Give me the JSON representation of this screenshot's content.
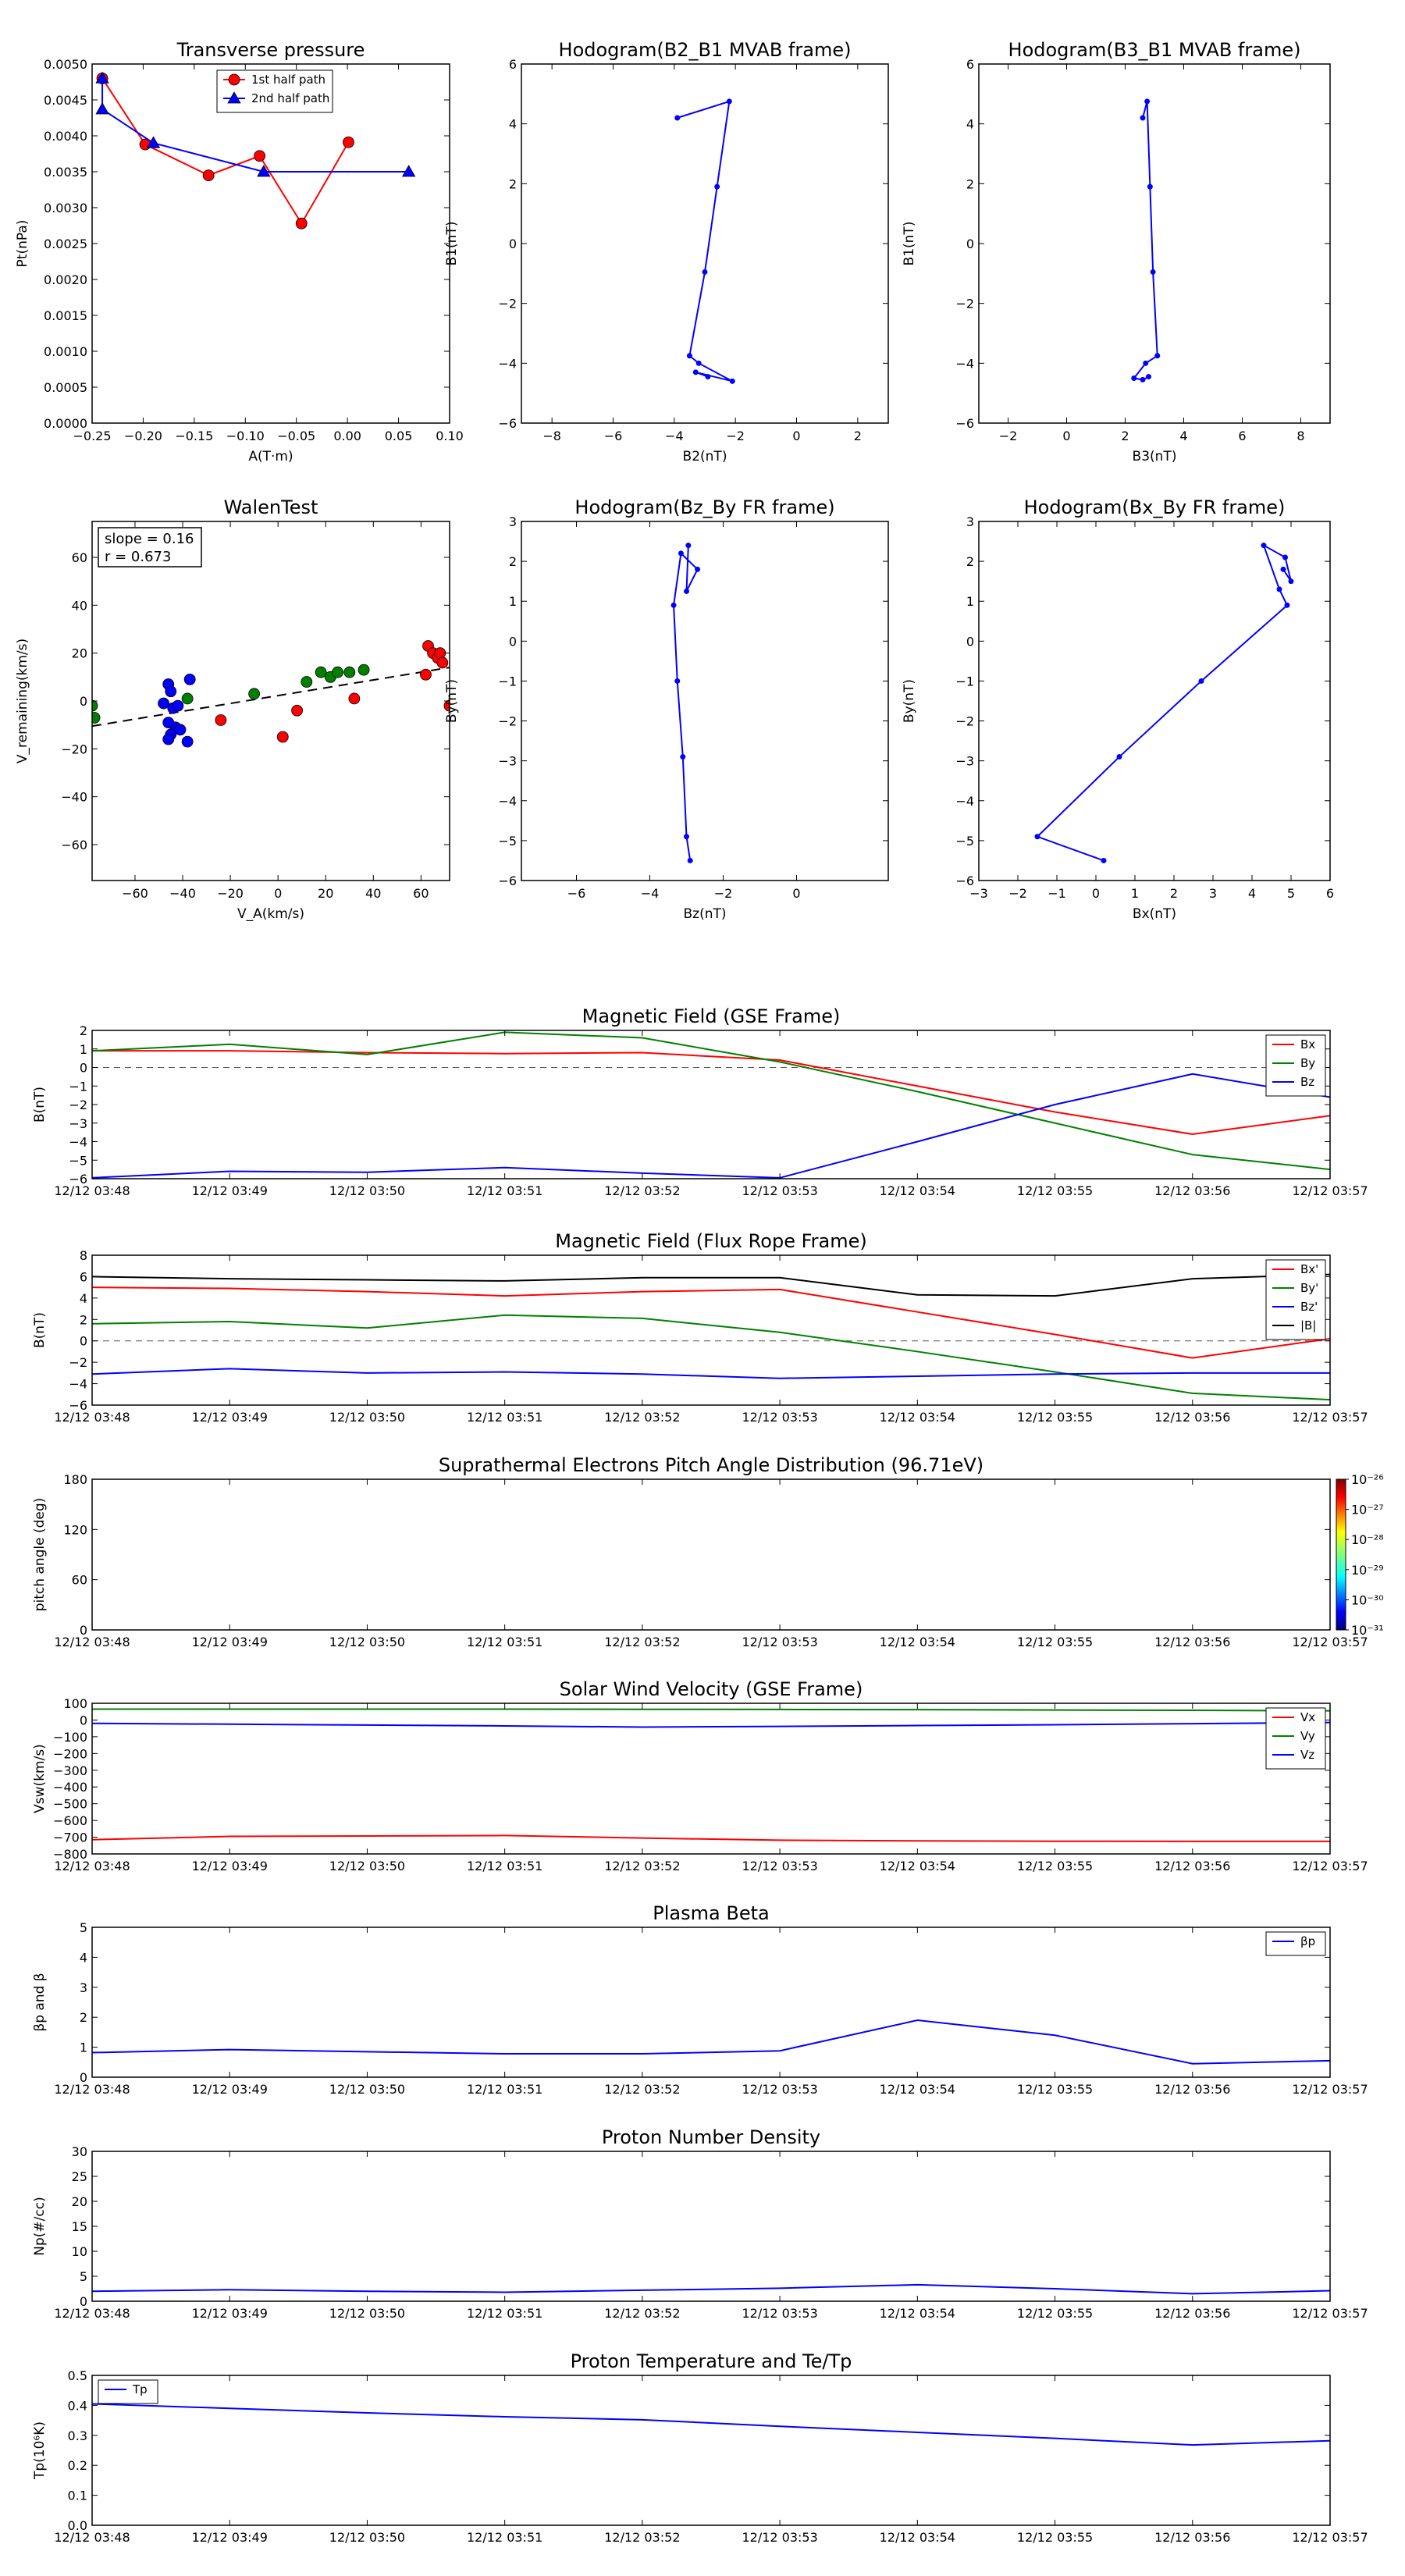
{
  "colors": {
    "red": "#ff0000",
    "green": "#008000",
    "blue": "#0000ff",
    "black": "#000000"
  },
  "time_ticks": [
    "12/12 03:48",
    "12/12 03:49",
    "12/12 03:50",
    "12/12 03:51",
    "12/12 03:52",
    "12/12 03:53",
    "12/12 03:54",
    "12/12 03:55",
    "12/12 03:56",
    "12/12 03:57"
  ],
  "chart_data": [
    {
      "id": "pt",
      "type": "line",
      "title": "Transverse pressure",
      "xlabel": "A(T·m)",
      "ylabel": "Pt(nPa)",
      "xlim": [
        -0.25,
        0.1
      ],
      "ylim": [
        0,
        0.005
      ],
      "xticks": [
        "−0.25",
        "−0.20",
        "−0.15",
        "−0.10",
        "−0.05",
        "0.00",
        "0.05",
        "0.10"
      ],
      "yticks": [
        "0.0000",
        "0.0005",
        "0.0010",
        "0.0015",
        "0.0020",
        "0.0025",
        "0.0030",
        "0.0035",
        "0.0040",
        "0.0045",
        "0.0050"
      ],
      "legend": "top-center",
      "series": [
        {
          "name": "1st half path",
          "color": "red",
          "marker": "circle",
          "x": [
            -0.24,
            -0.198,
            -0.136,
            -0.086,
            -0.045,
            0.001
          ],
          "y": [
            0.0048,
            0.00388,
            0.00345,
            0.00372,
            0.00278,
            0.00391
          ]
        },
        {
          "name": "2nd half path",
          "color": "blue",
          "marker": "triangle",
          "x": [
            -0.24,
            -0.24,
            -0.19,
            -0.082,
            0.06
          ],
          "y": [
            0.0048,
            0.00437,
            0.0039,
            0.0035,
            0.0035
          ]
        }
      ]
    },
    {
      "id": "h1",
      "type": "line",
      "title": "Hodogram(B2_B1 MVAB frame)",
      "xlabel": "B2(nT)",
      "ylabel": "B1(nT)",
      "xlim": [
        -9,
        3
      ],
      "ylim": [
        -6,
        6
      ],
      "xticks": [
        "−8",
        "−6",
        "−4",
        "−2",
        "0",
        "2"
      ],
      "yticks": [
        "−6",
        "−4",
        "−2",
        "0",
        "2",
        "4",
        "6"
      ],
      "series": [
        {
          "name": "",
          "color": "blue",
          "marker": "dot",
          "x": [
            -3.9,
            -2.2,
            -2.6,
            -3.0,
            -3.5,
            -3.2,
            -2.1,
            -3.3,
            -2.9
          ],
          "y": [
            4.2,
            4.75,
            1.9,
            -0.95,
            -3.75,
            -4.0,
            -4.6,
            -4.3,
            -4.45
          ]
        }
      ]
    },
    {
      "id": "h2",
      "type": "line",
      "title": "Hodogram(B3_B1 MVAB frame)",
      "xlabel": "B3(nT)",
      "ylabel": "B1(nT)",
      "xlim": [
        -3,
        9
      ],
      "ylim": [
        -6,
        6
      ],
      "xticks": [
        "−2",
        "0",
        "2",
        "4",
        "6",
        "8"
      ],
      "yticks": [
        "−6",
        "−4",
        "−2",
        "0",
        "2",
        "4",
        "6"
      ],
      "series": [
        {
          "name": "",
          "color": "blue",
          "marker": "dot",
          "x": [
            2.6,
            2.75,
            2.85,
            2.95,
            3.1,
            2.7,
            2.3,
            2.6,
            2.8
          ],
          "y": [
            4.2,
            4.75,
            1.9,
            -0.95,
            -3.75,
            -4.0,
            -4.5,
            -4.55,
            -4.45
          ]
        }
      ]
    },
    {
      "id": "walen",
      "type": "scatter",
      "title": "WalenTest",
      "xlabel": "V_A(km/s)",
      "ylabel": "V_remaining(km/s)",
      "xlim": [
        -78,
        72
      ],
      "ylim": [
        -75,
        75
      ],
      "xticks": [
        "−60",
        "−40",
        "−20",
        "0",
        "20",
        "40",
        "60"
      ],
      "yticks": [
        "−60",
        "−40",
        "−20",
        "0",
        "20",
        "40",
        "60"
      ],
      "annotation": [
        "slope = 0.16",
        "r = 0.673"
      ],
      "fit": {
        "x": [
          -78,
          72
        ],
        "y": [
          -10.5,
          14
        ]
      },
      "series": [
        {
          "name": "",
          "color": "red",
          "marker": "circle",
          "x": [
            -24,
            2,
            8,
            32,
            63,
            65,
            67,
            68,
            69,
            62,
            72
          ],
          "y": [
            -8,
            -15,
            -4,
            1,
            23,
            20,
            18,
            20,
            16,
            11,
            -2
          ]
        },
        {
          "name": "",
          "color": "green",
          "marker": "circle",
          "x": [
            -78,
            -77,
            -38,
            -10,
            12,
            18,
            22,
            25,
            30,
            36
          ],
          "y": [
            -2,
            -7,
            1,
            3,
            8,
            12,
            10,
            12,
            12,
            13
          ]
        },
        {
          "name": "",
          "color": "blue",
          "marker": "circle",
          "x": [
            -46,
            -45,
            -44,
            -48,
            -43,
            -46,
            -45,
            -41,
            -46,
            -37,
            -42,
            -38
          ],
          "y": [
            7,
            4,
            -3,
            -1,
            -11,
            -9,
            -14,
            -12,
            -16,
            9,
            -2,
            -17
          ]
        }
      ]
    },
    {
      "id": "h3",
      "type": "line",
      "title": "Hodogram(Bz_By FR frame)",
      "xlabel": "Bz(nT)",
      "ylabel": "By(nT)",
      "xlim": [
        -7.5,
        2.5
      ],
      "ylim": [
        -6,
        3
      ],
      "xticks": [
        "−6",
        "−4",
        "−2",
        "0"
      ],
      "yticks": [
        "−6",
        "−5",
        "−4",
        "−3",
        "−2",
        "−1",
        "0",
        "1",
        "2",
        "3"
      ],
      "series": [
        {
          "name": "",
          "color": "blue",
          "marker": "dot",
          "x": [
            -2.9,
            -3.0,
            -3.1,
            -3.25,
            -3.35,
            -3.15,
            -2.7,
            -3.0,
            -2.95
          ],
          "y": [
            -5.5,
            -4.9,
            -2.9,
            -1.0,
            0.9,
            2.2,
            1.8,
            1.25,
            2.4
          ]
        }
      ]
    },
    {
      "id": "h4",
      "type": "line",
      "title": "Hodogram(Bx_By FR frame)",
      "xlabel": "Bx(nT)",
      "ylabel": "By(nT)",
      "xlim": [
        -3,
        6
      ],
      "ylim": [
        -6,
        3
      ],
      "xticks": [
        "−3",
        "−2",
        "−1",
        "0",
        "1",
        "2",
        "3",
        "4",
        "5",
        "6"
      ],
      "yticks": [
        "−6",
        "−5",
        "−4",
        "−3",
        "−2",
        "−1",
        "0",
        "1",
        "2",
        "3"
      ],
      "series": [
        {
          "name": "",
          "color": "blue",
          "marker": "dot",
          "x": [
            0.2,
            -1.5,
            0.6,
            2.7,
            4.9,
            4.7,
            4.3,
            4.85,
            5.0,
            4.8
          ],
          "y": [
            -5.5,
            -4.9,
            -2.9,
            -1.0,
            0.9,
            1.3,
            2.4,
            2.1,
            1.5,
            1.8
          ]
        }
      ]
    },
    {
      "id": "bgse",
      "type": "line",
      "title": "Magnetic Field (GSE Frame)",
      "xlabel": "",
      "ylabel": "B(nT)",
      "xlim": [
        0,
        9
      ],
      "ylim": [
        -6,
        2
      ],
      "yticks": [
        "−6",
        "−5",
        "−4",
        "−3",
        "−2",
        "−1",
        "0",
        "1",
        "2"
      ],
      "zero_line": true,
      "legend": "top-right",
      "series": [
        {
          "name": "Bx",
          "color": "red",
          "x": [
            0,
            1,
            2,
            3,
            4,
            5,
            6,
            7,
            8,
            9
          ],
          "y": [
            0.9,
            0.9,
            0.8,
            0.75,
            0.8,
            0.4,
            -1.0,
            -2.4,
            -3.6,
            -2.6
          ]
        },
        {
          "name": "By",
          "color": "green",
          "x": [
            0,
            1,
            2,
            3,
            4,
            5,
            6,
            7,
            8,
            9
          ],
          "y": [
            0.9,
            1.25,
            0.7,
            1.9,
            1.6,
            0.3,
            -1.3,
            -3.0,
            -4.7,
            -5.5
          ]
        },
        {
          "name": "Bz",
          "color": "blue",
          "x": [
            0,
            1,
            2,
            3,
            4,
            5,
            6,
            7,
            8,
            9
          ],
          "y": [
            -5.95,
            -5.6,
            -5.65,
            -5.4,
            -5.7,
            -5.95,
            -4.0,
            -2.0,
            -0.35,
            -1.6
          ]
        }
      ]
    },
    {
      "id": "bfr",
      "type": "line",
      "title": "Magnetic Field (Flux Rope Frame)",
      "xlabel": "",
      "ylabel": "B(nT)",
      "xlim": [
        0,
        9
      ],
      "ylim": [
        -6,
        8
      ],
      "yticks": [
        "−6",
        "−4",
        "−2",
        "0",
        "2",
        "4",
        "6",
        "8"
      ],
      "zero_line": true,
      "legend": "top-right",
      "series": [
        {
          "name": "Bx'",
          "color": "red",
          "x": [
            0,
            1,
            2,
            3,
            4,
            5,
            6,
            7,
            8,
            9
          ],
          "y": [
            5.0,
            4.9,
            4.6,
            4.2,
            4.6,
            4.8,
            2.7,
            0.6,
            -1.6,
            0.2
          ]
        },
        {
          "name": "By'",
          "color": "green",
          "x": [
            0,
            1,
            2,
            3,
            4,
            5,
            6,
            7,
            8,
            9
          ],
          "y": [
            1.6,
            1.8,
            1.2,
            2.4,
            2.1,
            0.8,
            -1.0,
            -2.9,
            -4.9,
            -5.5
          ]
        },
        {
          "name": "Bz'",
          "color": "blue",
          "x": [
            0,
            1,
            2,
            3,
            4,
            5,
            6,
            7,
            8,
            9
          ],
          "y": [
            -3.1,
            -2.6,
            -3.0,
            -2.9,
            -3.1,
            -3.5,
            -3.3,
            -3.1,
            -3.0,
            -3.0
          ]
        },
        {
          "name": "|B|",
          "color": "black",
          "x": [
            0,
            1,
            2,
            3,
            4,
            5,
            6,
            7,
            8,
            9
          ],
          "y": [
            6.0,
            5.8,
            5.7,
            5.6,
            5.9,
            5.9,
            4.3,
            4.2,
            5.8,
            6.2
          ]
        }
      ]
    },
    {
      "id": "pad",
      "type": "heatmap",
      "title": "Suprathermal Electrons Pitch Angle Distribution (96.71eV)",
      "xlabel": "",
      "ylabel": "pitch angle (deg)",
      "xlim": [
        0,
        9
      ],
      "ylim": [
        0,
        180
      ],
      "yticks": [
        "0",
        "60",
        "120",
        "180"
      ],
      "colorbar": {
        "labels": [
          "10⁻²⁶",
          "10⁻²⁷",
          "10⁻²⁸",
          "10⁻²⁹",
          "10⁻³⁰",
          "10⁻³¹"
        ]
      }
    },
    {
      "id": "vsw",
      "type": "line",
      "title": "Solar Wind Velocity (GSE Frame)",
      "xlabel": "",
      "ylabel": "Vsw(km/s)",
      "xlim": [
        0,
        9
      ],
      "ylim": [
        -800,
        100
      ],
      "yticks": [
        "−800",
        "−700",
        "−600",
        "−500",
        "−400",
        "−300",
        "−200",
        "−100",
        "0",
        "100"
      ],
      "legend": "top-right",
      "series": [
        {
          "name": "Vx",
          "color": "red",
          "x": [
            0,
            1,
            2,
            3,
            4,
            5,
            6,
            7,
            8,
            9
          ],
          "y": [
            -715,
            -695,
            -693,
            -690,
            -705,
            -718,
            -722,
            -724,
            -725,
            -725
          ]
        },
        {
          "name": "Vy",
          "color": "green",
          "x": [
            0,
            1,
            2,
            3,
            4,
            5,
            6,
            7,
            8,
            9
          ],
          "y": [
            65,
            65,
            65,
            65,
            64,
            63,
            62,
            60,
            58,
            55
          ]
        },
        {
          "name": "Vz",
          "color": "blue",
          "x": [
            0,
            1,
            2,
            3,
            4,
            5,
            6,
            7,
            8,
            9
          ],
          "y": [
            -20,
            -25,
            -30,
            -35,
            -42,
            -38,
            -33,
            -28,
            -22,
            -15
          ]
        }
      ]
    },
    {
      "id": "beta",
      "type": "line",
      "title": "Plasma Beta",
      "xlabel": "",
      "ylabel": "βp and β",
      "xlim": [
        0,
        9
      ],
      "ylim": [
        0,
        5
      ],
      "yticks": [
        "0",
        "1",
        "2",
        "3",
        "4",
        "5"
      ],
      "legend": "top-right",
      "series": [
        {
          "name": "βp",
          "color": "blue",
          "x": [
            0,
            1,
            2,
            3,
            4,
            5,
            6,
            7,
            8,
            9
          ],
          "y": [
            0.82,
            0.92,
            0.85,
            0.78,
            0.78,
            0.88,
            1.9,
            1.4,
            0.45,
            0.55
          ]
        }
      ]
    },
    {
      "id": "np",
      "type": "line",
      "title": "Proton Number Density",
      "xlabel": "",
      "ylabel": "Np(#/cc)",
      "xlim": [
        0,
        9
      ],
      "ylim": [
        0,
        30
      ],
      "yticks": [
        "0",
        "5",
        "10",
        "15",
        "20",
        "25",
        "30"
      ],
      "series": [
        {
          "name": "",
          "color": "blue",
          "x": [
            0,
            1,
            2,
            3,
            4,
            5,
            6,
            7,
            8,
            9
          ],
          "y": [
            2.0,
            2.3,
            2.0,
            1.8,
            2.2,
            2.6,
            3.3,
            2.5,
            1.5,
            2.1
          ]
        }
      ]
    },
    {
      "id": "tp",
      "type": "line",
      "title": "Proton Temperature and Te/Tp",
      "xlabel": "",
      "ylabel": "Tp(10⁶K)",
      "xlim": [
        0,
        9
      ],
      "ylim": [
        0,
        0.5
      ],
      "yticks": [
        "0.0",
        "0.1",
        "0.2",
        "0.3",
        "0.4",
        "0.5"
      ],
      "legend": "top-left",
      "series": [
        {
          "name": "Tp",
          "color": "blue",
          "x": [
            0,
            1,
            2,
            3,
            4,
            5,
            6,
            7,
            8,
            9
          ],
          "y": [
            0.405,
            0.39,
            0.375,
            0.362,
            0.352,
            0.33,
            0.31,
            0.29,
            0.268,
            0.282
          ]
        }
      ]
    }
  ]
}
